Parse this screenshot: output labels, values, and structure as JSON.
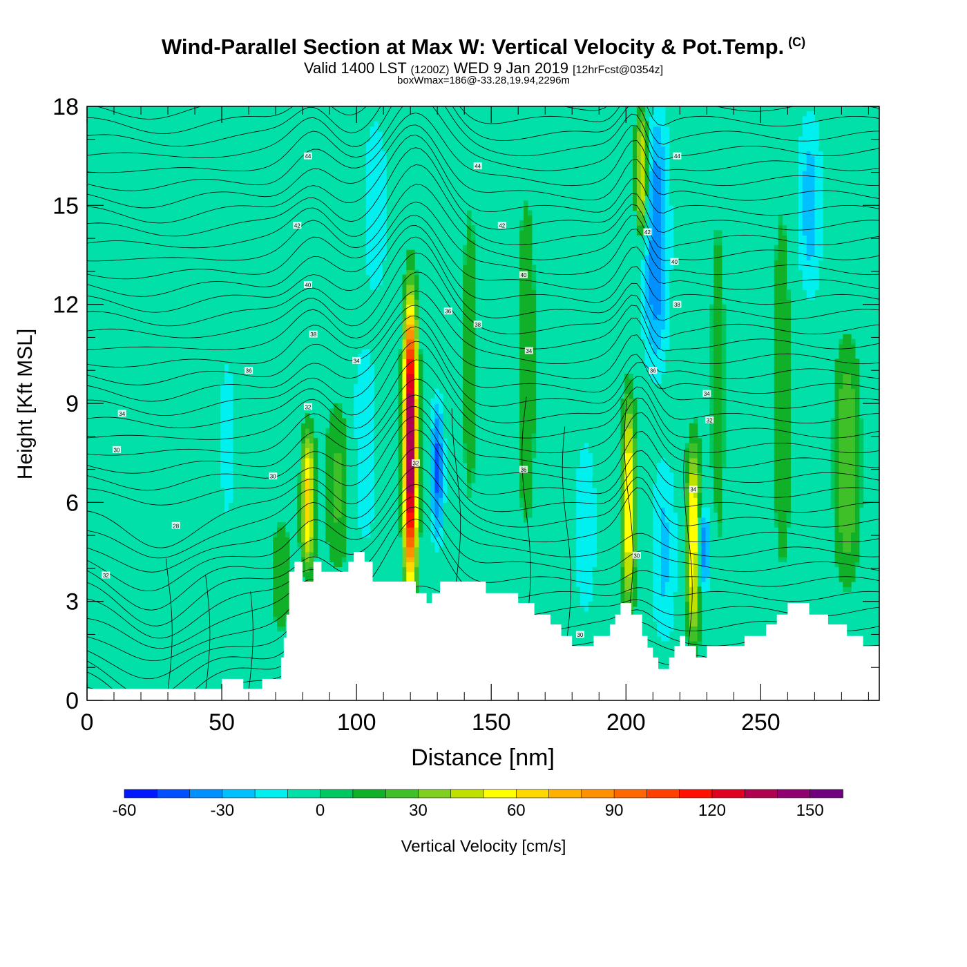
{
  "titles": {
    "main": "Wind-Parallel Section at Max W: Vertical Velocity & Pot.Temp.",
    "copyright": "(C)",
    "valid_prefix": "Valid 1400 LST",
    "valid_utc": "(1200Z)",
    "valid_date": "WED 9 Jan 2019",
    "forecast": "[12hrFcst@0354z]",
    "box_wmax": "boxWmax=186@-33.28,19.94,2296m"
  },
  "chart_data": {
    "type": "heatmap",
    "xlabel": "Distance [nm]",
    "ylabel": "Height [Kft MSL]",
    "xlim": [
      0,
      294
    ],
    "ylim": [
      0,
      18
    ],
    "x_ticks": [
      0,
      50,
      100,
      150,
      200,
      250
    ],
    "y_ticks": [
      0,
      3,
      6,
      9,
      12,
      15,
      18
    ],
    "colorbar": {
      "label": "Vertical Velocity [cm/s]",
      "levels": [
        -60,
        -50,
        -40,
        -30,
        -20,
        -10,
        0,
        10,
        20,
        30,
        40,
        50,
        60,
        70,
        80,
        90,
        100,
        110,
        120,
        130,
        140,
        150,
        160
      ],
      "colors": [
        "#0018ff",
        "#0050ff",
        "#0090ff",
        "#00c0ff",
        "#00f0f0",
        "#00e0a8",
        "#00c860",
        "#10b028",
        "#40c028",
        "#80d020",
        "#c0e000",
        "#ffff00",
        "#ffd800",
        "#ffb000",
        "#ff9000",
        "#ff6800",
        "#ff4000",
        "#ff1000",
        "#e00020",
        "#b00050",
        "#900070",
        "#700080"
      ],
      "tick_labels": [
        "-60",
        "-30",
        "0",
        "30",
        "60",
        "90",
        "120",
        "150"
      ]
    },
    "background_value": 0,
    "updrafts": [
      {
        "x": 11,
        "y0": 2.0,
        "y1": 14.0,
        "value": 8
      },
      {
        "x": 35,
        "y0": 1.0,
        "y1": 10.0,
        "value": 8
      },
      {
        "x": 72,
        "y0": 1.5,
        "y1": 6.0,
        "value": 14
      },
      {
        "x": 82,
        "y0": 4.0,
        "y1": 8.2,
        "value": 62
      },
      {
        "x": 93,
        "y0": 3.8,
        "y1": 9.2,
        "value": 22
      },
      {
        "x": 120,
        "y0": 3.6,
        "y1": 12.0,
        "value": 150
      },
      {
        "x": 142,
        "y0": 3.5,
        "y1": 17.5,
        "value": 12
      },
      {
        "x": 163,
        "y0": 3.5,
        "y1": 17.0,
        "value": 14
      },
      {
        "x": 201,
        "y0": 2.8,
        "y1": 9.2,
        "value": 62
      },
      {
        "x": 206,
        "y0": 14.0,
        "y1": 18.0,
        "value": 60
      },
      {
        "x": 225,
        "y0": 1.8,
        "y1": 7.8,
        "value": 62
      },
      {
        "x": 234,
        "y0": 1.6,
        "y1": 17.5,
        "value": 12
      },
      {
        "x": 258,
        "y0": 2.0,
        "y1": 17.0,
        "value": 14
      },
      {
        "x": 282,
        "y0": 3.5,
        "y1": 11.0,
        "value": 30
      }
    ],
    "downdrafts": [
      {
        "x": 52,
        "y0": 4.0,
        "y1": 12.0,
        "value": -12
      },
      {
        "x": 103,
        "y0": 4.5,
        "y1": 11.0,
        "value": -20
      },
      {
        "x": 130,
        "y0": 4.8,
        "y1": 9.2,
        "value": -42
      },
      {
        "x": 107,
        "y0": 12.0,
        "y1": 18.0,
        "value": -18
      },
      {
        "x": 185,
        "y0": 2.0,
        "y1": 8.5,
        "value": -16
      },
      {
        "x": 211,
        "y0": 10.0,
        "y1": 18.0,
        "value": -38
      },
      {
        "x": 214,
        "y0": 1.5,
        "y1": 7.5,
        "value": -22
      },
      {
        "x": 229,
        "y0": 3.2,
        "y1": 6.0,
        "value": -42
      },
      {
        "x": 268,
        "y0": 12.0,
        "y1": 18.0,
        "value": -24
      }
    ],
    "terrain": [
      {
        "x": 0,
        "h": 0.35
      },
      {
        "x": 49,
        "h": 0.35
      },
      {
        "x": 50,
        "h": 0.65
      },
      {
        "x": 57,
        "h": 0.65
      },
      {
        "x": 58,
        "h": 0.35
      },
      {
        "x": 64,
        "h": 0.35
      },
      {
        "x": 65,
        "h": 0.65
      },
      {
        "x": 71,
        "h": 0.65
      },
      {
        "x": 72,
        "h": 1.3
      },
      {
        "x": 73,
        "h": 1.9
      },
      {
        "x": 74,
        "h": 2.6
      },
      {
        "x": 75,
        "h": 3.9
      },
      {
        "x": 77,
        "h": 4.2
      },
      {
        "x": 80,
        "h": 3.6
      },
      {
        "x": 83,
        "h": 3.6
      },
      {
        "x": 84,
        "h": 4.2
      },
      {
        "x": 87,
        "h": 3.9
      },
      {
        "x": 92,
        "h": 3.9
      },
      {
        "x": 97,
        "h": 4.2
      },
      {
        "x": 99,
        "h": 4.5
      },
      {
        "x": 103,
        "h": 4.2
      },
      {
        "x": 106,
        "h": 3.6
      },
      {
        "x": 121,
        "h": 3.6
      },
      {
        "x": 122,
        "h": 3.25
      },
      {
        "x": 126,
        "h": 2.95
      },
      {
        "x": 128,
        "h": 3.25
      },
      {
        "x": 131,
        "h": 3.6
      },
      {
        "x": 146,
        "h": 3.6
      },
      {
        "x": 148,
        "h": 3.25
      },
      {
        "x": 160,
        "h": 2.95
      },
      {
        "x": 166,
        "h": 2.6
      },
      {
        "x": 172,
        "h": 2.3
      },
      {
        "x": 176,
        "h": 1.95
      },
      {
        "x": 180,
        "h": 1.65
      },
      {
        "x": 188,
        "h": 1.95
      },
      {
        "x": 194,
        "h": 2.3
      },
      {
        "x": 196,
        "h": 2.6
      },
      {
        "x": 198,
        "h": 2.95
      },
      {
        "x": 202,
        "h": 2.6
      },
      {
        "x": 206,
        "h": 1.95
      },
      {
        "x": 208,
        "h": 1.6
      },
      {
        "x": 210,
        "h": 1.3
      },
      {
        "x": 212,
        "h": 0.95
      },
      {
        "x": 216,
        "h": 1.3
      },
      {
        "x": 218,
        "h": 1.65
      },
      {
        "x": 220,
        "h": 1.95
      },
      {
        "x": 222,
        "h": 1.65
      },
      {
        "x": 226,
        "h": 1.3
      },
      {
        "x": 230,
        "h": 1.65
      },
      {
        "x": 244,
        "h": 1.95
      },
      {
        "x": 252,
        "h": 2.3
      },
      {
        "x": 256,
        "h": 2.6
      },
      {
        "x": 260,
        "h": 2.95
      },
      {
        "x": 268,
        "h": 2.6
      },
      {
        "x": 275,
        "h": 2.3
      },
      {
        "x": 282,
        "h": 1.95
      },
      {
        "x": 288,
        "h": 1.65
      },
      {
        "x": 294,
        "h": 1.65
      }
    ],
    "theta_contours": {
      "interval_k": 1,
      "base_k": 20,
      "labels": [
        {
          "x": 7,
          "y": 3.8,
          "text": "32"
        },
        {
          "x": 33,
          "y": 5.3,
          "text": "28"
        },
        {
          "x": 11,
          "y": 7.6,
          "text": "30"
        },
        {
          "x": 13,
          "y": 8.7,
          "text": "34"
        },
        {
          "x": 69,
          "y": 6.8,
          "text": "30"
        },
        {
          "x": 82,
          "y": 8.9,
          "text": "32"
        },
        {
          "x": 60,
          "y": 10.0,
          "text": "36"
        },
        {
          "x": 100,
          "y": 10.3,
          "text": "34"
        },
        {
          "x": 84,
          "y": 11.1,
          "text": "38"
        },
        {
          "x": 82,
          "y": 12.6,
          "text": "40"
        },
        {
          "x": 78,
          "y": 14.4,
          "text": "42"
        },
        {
          "x": 82,
          "y": 16.5,
          "text": "44"
        },
        {
          "x": 122,
          "y": 7.2,
          "text": "32"
        },
        {
          "x": 134,
          "y": 11.8,
          "text": "36"
        },
        {
          "x": 145,
          "y": 11.4,
          "text": "38"
        },
        {
          "x": 145,
          "y": 16.2,
          "text": "44"
        },
        {
          "x": 154,
          "y": 14.4,
          "text": "42"
        },
        {
          "x": 162,
          "y": 12.9,
          "text": "40"
        },
        {
          "x": 164,
          "y": 10.6,
          "text": "34"
        },
        {
          "x": 162,
          "y": 7.0,
          "text": "36"
        },
        {
          "x": 183,
          "y": 2.0,
          "text": "30"
        },
        {
          "x": 204,
          "y": 4.4,
          "text": "30"
        },
        {
          "x": 208,
          "y": 14.2,
          "text": "42"
        },
        {
          "x": 210,
          "y": 10.0,
          "text": "36"
        },
        {
          "x": 219,
          "y": 12.0,
          "text": "38"
        },
        {
          "x": 218,
          "y": 13.3,
          "text": "40"
        },
        {
          "x": 219,
          "y": 16.5,
          "text": "44"
        },
        {
          "x": 225,
          "y": 6.4,
          "text": "34"
        },
        {
          "x": 230,
          "y": 9.3,
          "text": "34"
        },
        {
          "x": 231,
          "y": 8.5,
          "text": "32"
        }
      ]
    }
  }
}
